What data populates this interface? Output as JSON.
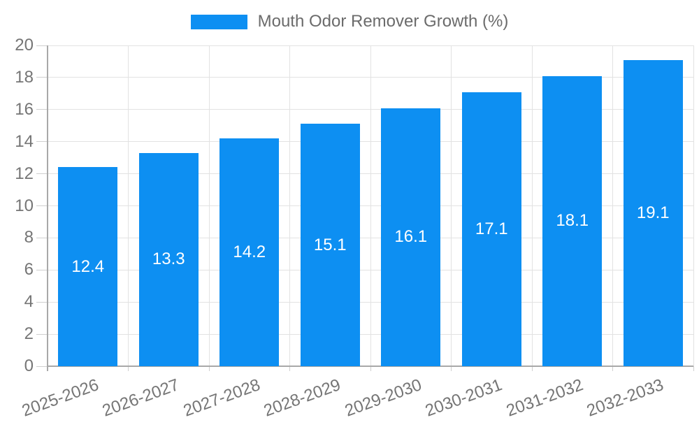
{
  "legend": {
    "series_label": "Mouth Odor Remover Growth (%)"
  },
  "chart_data": {
    "type": "bar",
    "title": "Mouth Odor Remover Growth (%)",
    "categories": [
      "2025-2026",
      "2026-2027",
      "2027-2028",
      "2028-2029",
      "2029-2030",
      "2030-2031",
      "2031-2032",
      "2032-2033"
    ],
    "values": [
      12.4,
      13.3,
      14.2,
      15.1,
      16.1,
      17.1,
      18.1,
      19.1
    ],
    "ylabel": "",
    "xlabel": "",
    "ylim": [
      0,
      20
    ],
    "ytick_step": 2,
    "yticks": [
      0,
      2,
      4,
      6,
      8,
      10,
      12,
      14,
      16,
      18,
      20
    ],
    "grid": true,
    "legend_position": "top",
    "data_labels": "inside-center",
    "colors": {
      "bar": "#0d8ff2",
      "bar_value_text": "#ffffff",
      "axis_text": "#757575",
      "legend_text": "#6b6b6b",
      "gridline": "#e2e2e2",
      "tick": "#cfcfcf",
      "axis_line": "#a8a8a8",
      "background": "#ffffff"
    }
  }
}
